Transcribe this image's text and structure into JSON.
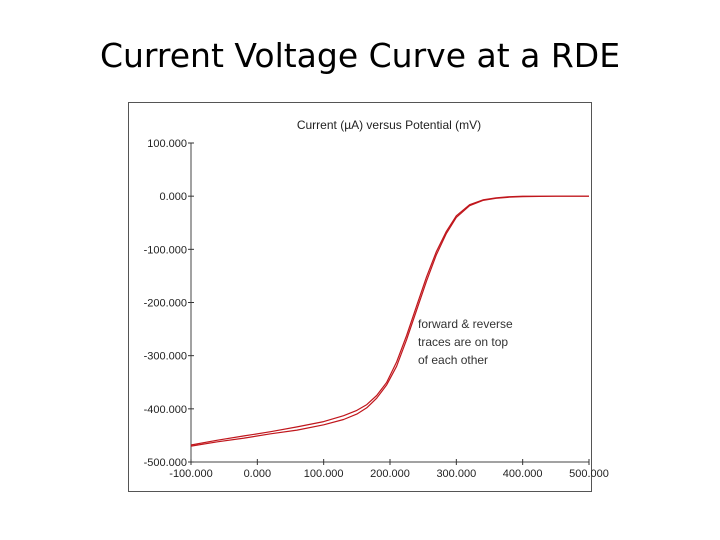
{
  "slide": {
    "title": "Current Voltage Curve at a RDE"
  },
  "chart_data": {
    "type": "line",
    "title": "Current (µA) versus Potential (mV)",
    "xlabel": "",
    "ylabel": "",
    "xlim": [
      -100,
      500
    ],
    "ylim": [
      -500,
      100
    ],
    "x_ticks": [
      -100,
      0,
      100,
      200,
      300,
      400,
      500
    ],
    "y_ticks": [
      100,
      0,
      -100,
      -200,
      -300,
      -400,
      -500
    ],
    "x_tick_labels": [
      "-100.000",
      "0.000",
      "100.000",
      "200.000",
      "300.000",
      "400.000",
      "500.000"
    ],
    "y_tick_labels": [
      "100.000",
      "0.000",
      "-100.000",
      "-200.000",
      "-300.000",
      "-400.000",
      "-500.000"
    ],
    "grid": false,
    "line_color": "#c0161c",
    "annotation": {
      "lines": [
        "forward & reverse",
        "traces are on top",
        "of each other"
      ]
    },
    "series": [
      {
        "x": [
          -100,
          -60,
          -20,
          20,
          60,
          100,
          130,
          150,
          165,
          180,
          195,
          210,
          225,
          240,
          255,
          270,
          285,
          300,
          320,
          340,
          360,
          380,
          400,
          450,
          500
        ],
        "y": [
          -470,
          -462,
          -455,
          -447,
          -440,
          -430,
          -420,
          -410,
          -398,
          -380,
          -355,
          -320,
          -270,
          -215,
          -160,
          -110,
          -70,
          -40,
          -18,
          -8,
          -4,
          -2,
          -1,
          0,
          0
        ]
      },
      {
        "x": [
          -100,
          -60,
          -20,
          20,
          60,
          100,
          130,
          150,
          165,
          180,
          195,
          210,
          225,
          240,
          255,
          270,
          285,
          300,
          320,
          340,
          360,
          380,
          400,
          450,
          500
        ],
        "y": [
          -468,
          -459,
          -451,
          -443,
          -434,
          -424,
          -413,
          -403,
          -392,
          -375,
          -350,
          -312,
          -262,
          -207,
          -152,
          -104,
          -66,
          -37,
          -16,
          -7,
          -3,
          -1,
          0,
          0,
          0
        ]
      }
    ]
  }
}
